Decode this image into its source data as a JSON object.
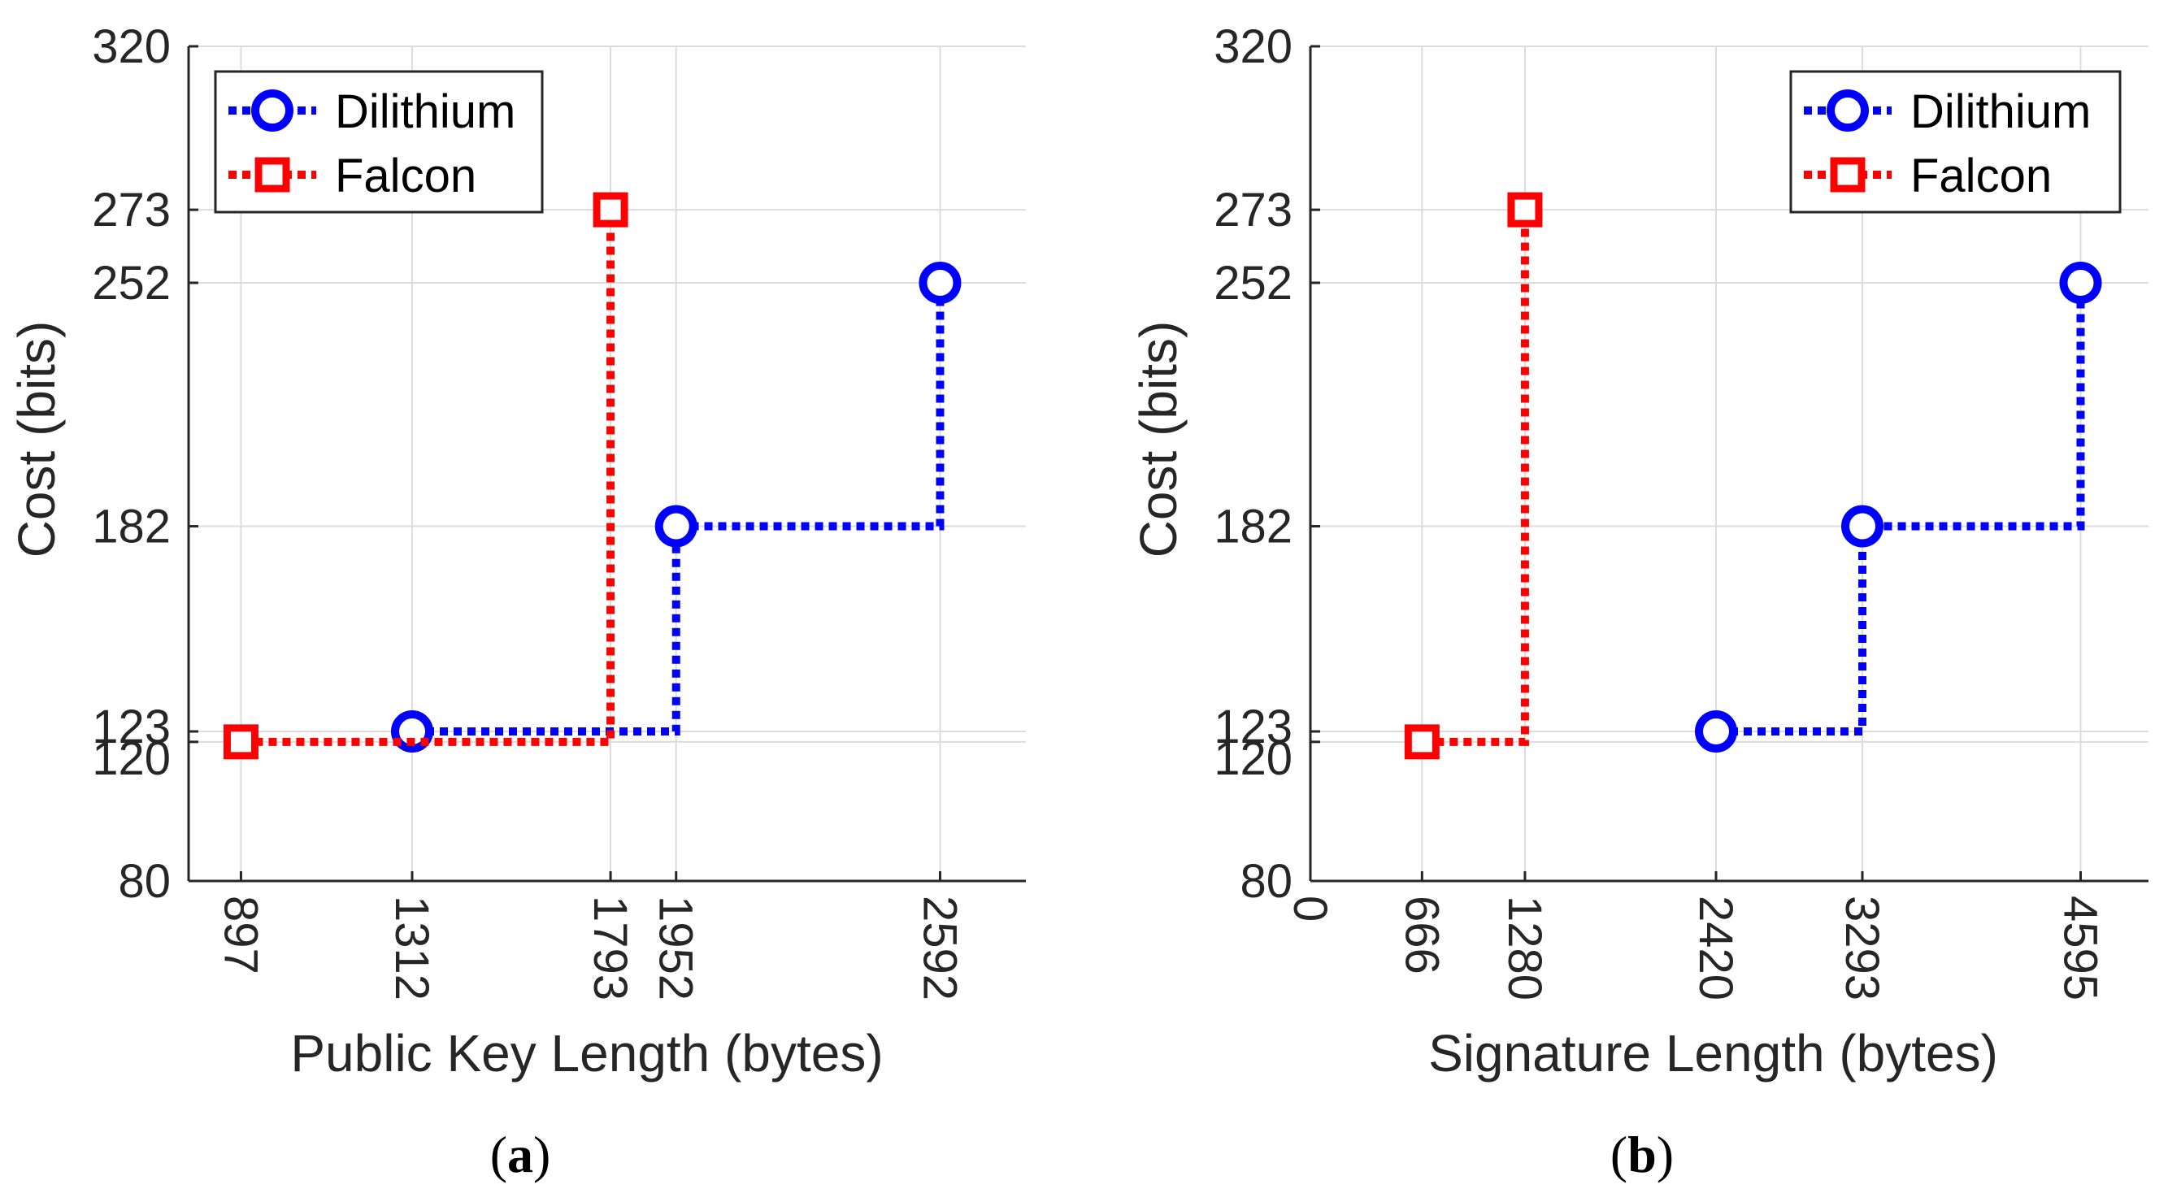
{
  "chart_data": [
    {
      "type": "line",
      "style": "staircase",
      "title": "",
      "xlabel": "Public Key Length (bytes)",
      "ylabel": "Cost (bits)",
      "caption_label": "a",
      "xlim": [
        770,
        2800
      ],
      "ylim": [
        80,
        320
      ],
      "xticks": [
        897,
        1312,
        1793,
        1952,
        2592
      ],
      "yticks": [
        80,
        120,
        123,
        182,
        252,
        273,
        320
      ],
      "legend_position": "top-left",
      "grid": true,
      "series": [
        {
          "name": "Dilithium",
          "marker": "circle",
          "color": "#0000ff",
          "x": [
            1312,
            1952,
            2592
          ],
          "y": [
            123,
            182,
            252
          ]
        },
        {
          "name": "Falcon",
          "marker": "square",
          "color": "#ff0000",
          "x": [
            897,
            1793
          ],
          "y": [
            120,
            273
          ]
        }
      ]
    },
    {
      "type": "line",
      "style": "staircase",
      "title": "",
      "xlabel": "Signature Length (bytes)",
      "ylabel": "Cost (bits)",
      "caption_label": "b",
      "xlim": [
        0,
        5000
      ],
      "ylim": [
        80,
        320
      ],
      "xticks": [
        0,
        666,
        1280,
        2420,
        3293,
        4595
      ],
      "yticks": [
        80,
        120,
        123,
        182,
        252,
        273,
        320
      ],
      "legend_position": "top-right",
      "grid": true,
      "series": [
        {
          "name": "Dilithium",
          "marker": "circle",
          "color": "#0000ff",
          "x": [
            2420,
            3293,
            4595
          ],
          "y": [
            123,
            182,
            252
          ]
        },
        {
          "name": "Falcon",
          "marker": "square",
          "color": "#ff0000",
          "x": [
            666,
            1280
          ],
          "y": [
            120,
            273
          ]
        }
      ]
    }
  ]
}
